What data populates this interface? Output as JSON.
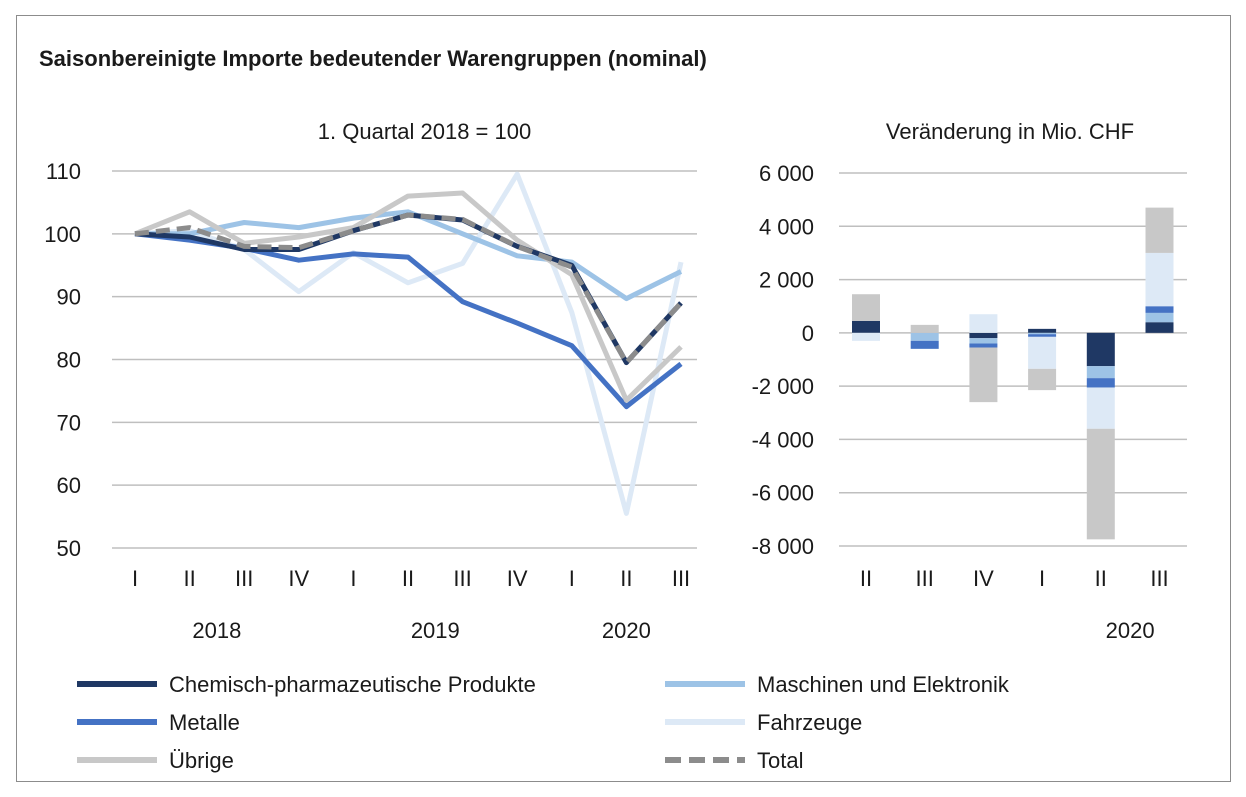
{
  "title": "Saisonbereinigte Importe bedeutender Warengruppen (nominal)",
  "colors": {
    "chem": "#1f3864",
    "masch": "#9dc3e6",
    "metalle": "#4472c4",
    "fahrzeuge": "#dde9f6",
    "uebrige": "#c8c8c8",
    "total": "#8c8c8c",
    "grid": "#bfbfbf"
  },
  "legend": [
    {
      "key": "chem",
      "label": "Chemisch-pharmazeutische Produkte",
      "dashed": false
    },
    {
      "key": "masch",
      "label": "Maschinen und Elektronik",
      "dashed": false
    },
    {
      "key": "metalle",
      "label": "Metalle",
      "dashed": false
    },
    {
      "key": "fahrzeuge",
      "label": "Fahrzeuge",
      "dashed": false
    },
    {
      "key": "uebrige",
      "label": "Übrige",
      "dashed": false
    },
    {
      "key": "total",
      "label": "Total",
      "dashed": true
    }
  ],
  "chart_data": [
    {
      "type": "line",
      "subtitle": "1. Quartal 2018 = 100",
      "categories": [
        "I",
        "II",
        "III",
        "IV",
        "I",
        "II",
        "III",
        "IV",
        "I",
        "II",
        "III"
      ],
      "year_labels": [
        {
          "label": "2018",
          "center_index": 1.5
        },
        {
          "label": "2019",
          "center_index": 5.5
        },
        {
          "label": "2020",
          "center_index": 9
        }
      ],
      "ylim": [
        50,
        110
      ],
      "yticks": [
        50,
        60,
        70,
        80,
        90,
        100,
        110
      ],
      "grid": true,
      "series": [
        {
          "key": "fahrzeuge",
          "name": "Fahrzeuge",
          "values": [
            100,
            100.5,
            97.5,
            90.8,
            97,
            92.2,
            95.3,
            109.5,
            87.5,
            55.5,
            95.5
          ]
        },
        {
          "key": "masch",
          "name": "Maschinen und Elektronik",
          "values": [
            100,
            100,
            101.8,
            101,
            102.5,
            103.5,
            100,
            96.5,
            95.5,
            89.7,
            94
          ]
        },
        {
          "key": "metalle",
          "name": "Metalle",
          "values": [
            100,
            99,
            97.7,
            95.8,
            96.8,
            96.3,
            89.2,
            85.8,
            82.2,
            72.5,
            79.3
          ]
        },
        {
          "key": "uebrige",
          "name": "Übrige",
          "values": [
            100,
            103.5,
            98.5,
            99.5,
            101,
            106,
            106.5,
            99,
            93.5,
            73.5,
            82
          ]
        },
        {
          "key": "chem",
          "name": "Chemisch-pharmazeutische Produkte",
          "values": [
            100,
            99.5,
            97.5,
            97.5,
            100.5,
            103,
            102.2,
            98,
            95,
            79.5,
            89
          ]
        },
        {
          "key": "total",
          "name": "Total",
          "dashed": true,
          "values": [
            100,
            101,
            98,
            97.8,
            100.5,
            103,
            102.3,
            98,
            94.7,
            79.5,
            89
          ]
        }
      ]
    },
    {
      "type": "bar",
      "stacked": true,
      "subtitle": "Veränderung in Mio. CHF",
      "categories": [
        "II",
        "III",
        "IV",
        "I",
        "II",
        "III"
      ],
      "year_labels": [
        {
          "label": "2020",
          "center_index": 4.5
        }
      ],
      "ylim": [
        -8000,
        6000
      ],
      "yticks": [
        -8000,
        -6000,
        -4000,
        -2000,
        0,
        2000,
        4000,
        6000
      ],
      "ytick_labels": [
        "-8 000",
        "-6 000",
        "-4 000",
        "-2 000",
        "0",
        "2 000",
        "4 000",
        "6 000"
      ],
      "grid": true,
      "series": [
        {
          "key": "chem",
          "name": "Chemisch-pharmazeutische Produkte",
          "values": [
            450,
            0,
            -200,
            150,
            -1250,
            400
          ]
        },
        {
          "key": "masch",
          "name": "Maschinen und Elektronik",
          "values": [
            0,
            -300,
            -200,
            -50,
            -450,
            350
          ]
        },
        {
          "key": "metalle",
          "name": "Metalle",
          "values": [
            0,
            -300,
            -150,
            -100,
            -350,
            250
          ]
        },
        {
          "key": "fahrzeuge",
          "name": "Fahrzeuge",
          "values": [
            -300,
            0,
            700,
            -1200,
            -1550,
            2000
          ]
        },
        {
          "key": "uebrige",
          "name": "Übrige",
          "values": [
            1000,
            300,
            -2050,
            -800,
            -4150,
            1700
          ]
        }
      ]
    }
  ]
}
